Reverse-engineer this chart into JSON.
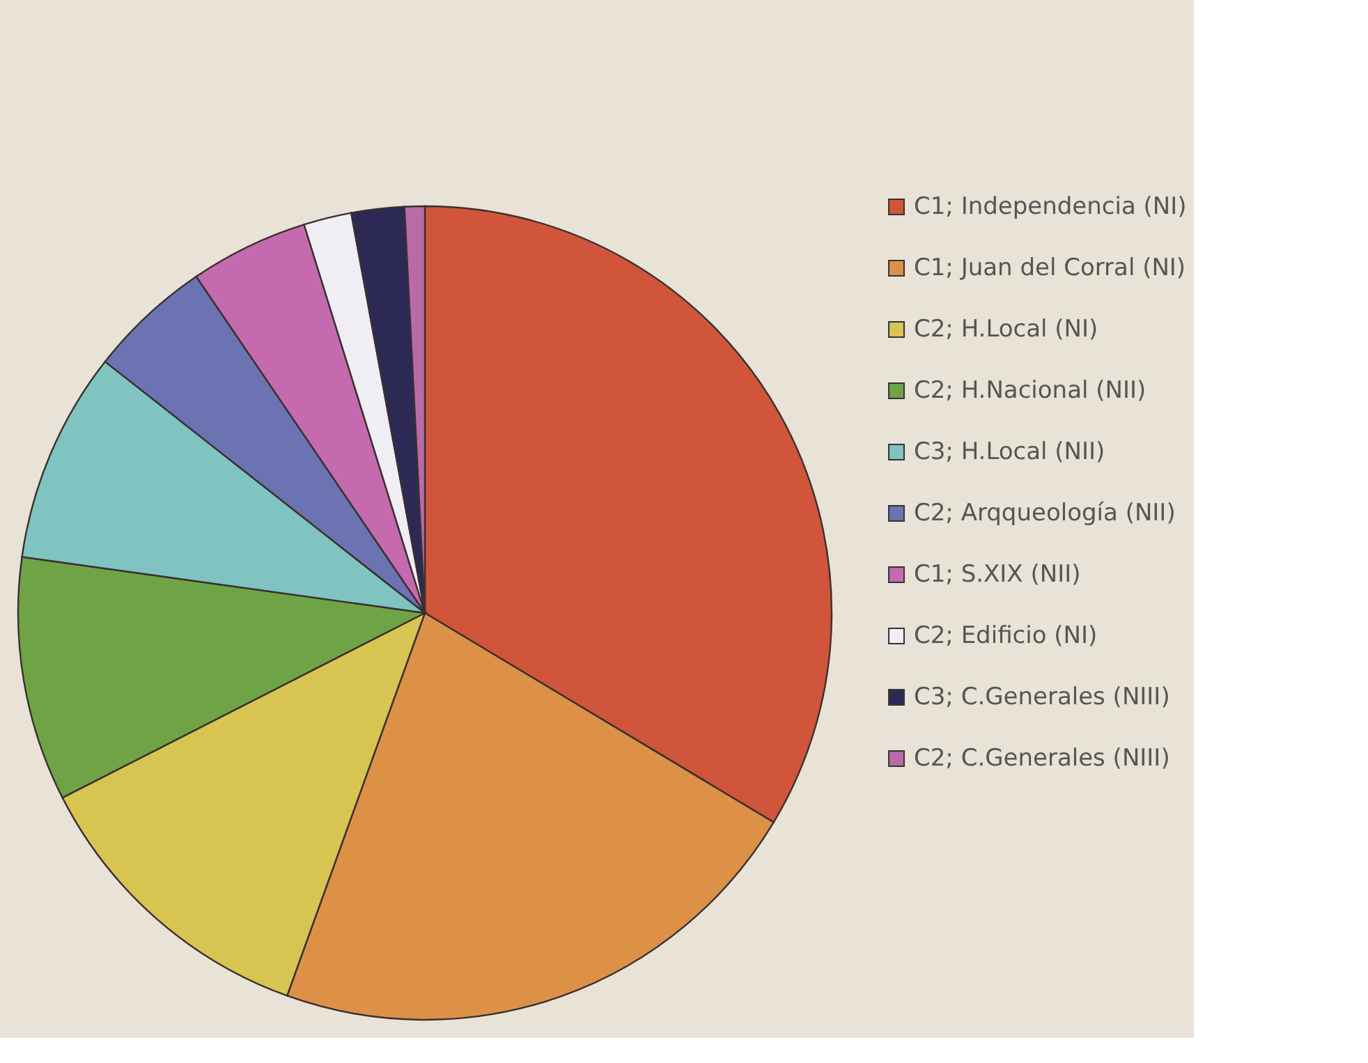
{
  "chart_data": {
    "type": "pie",
    "categories": [
      "C1; Independencia (NI)",
      "C1; Juan del Corral (NI)",
      "C2; H.Local (NI)",
      "C2; H.Nacional (NII)",
      "C3; H.Local (NII)",
      "C2; Arqqueología (NII)",
      "C1; S.XIX (NII)",
      "C2; Edificio (NI)",
      "C3; C.Generales (NIII)",
      "C2; C.Generales (NIII)"
    ],
    "values": [
      33.6,
      21.9,
      12.0,
      9.7,
      8.4,
      4.9,
      4.7,
      1.9,
      2.1,
      0.8
    ],
    "colors": [
      "#d0553a",
      "#dc9147",
      "#d8c451",
      "#6fa446",
      "#7fc4c0",
      "#6b73b3",
      "#c56aae",
      "#f0eef4",
      "#2c2a55",
      "#b96aa8"
    ],
    "legend": "right"
  }
}
